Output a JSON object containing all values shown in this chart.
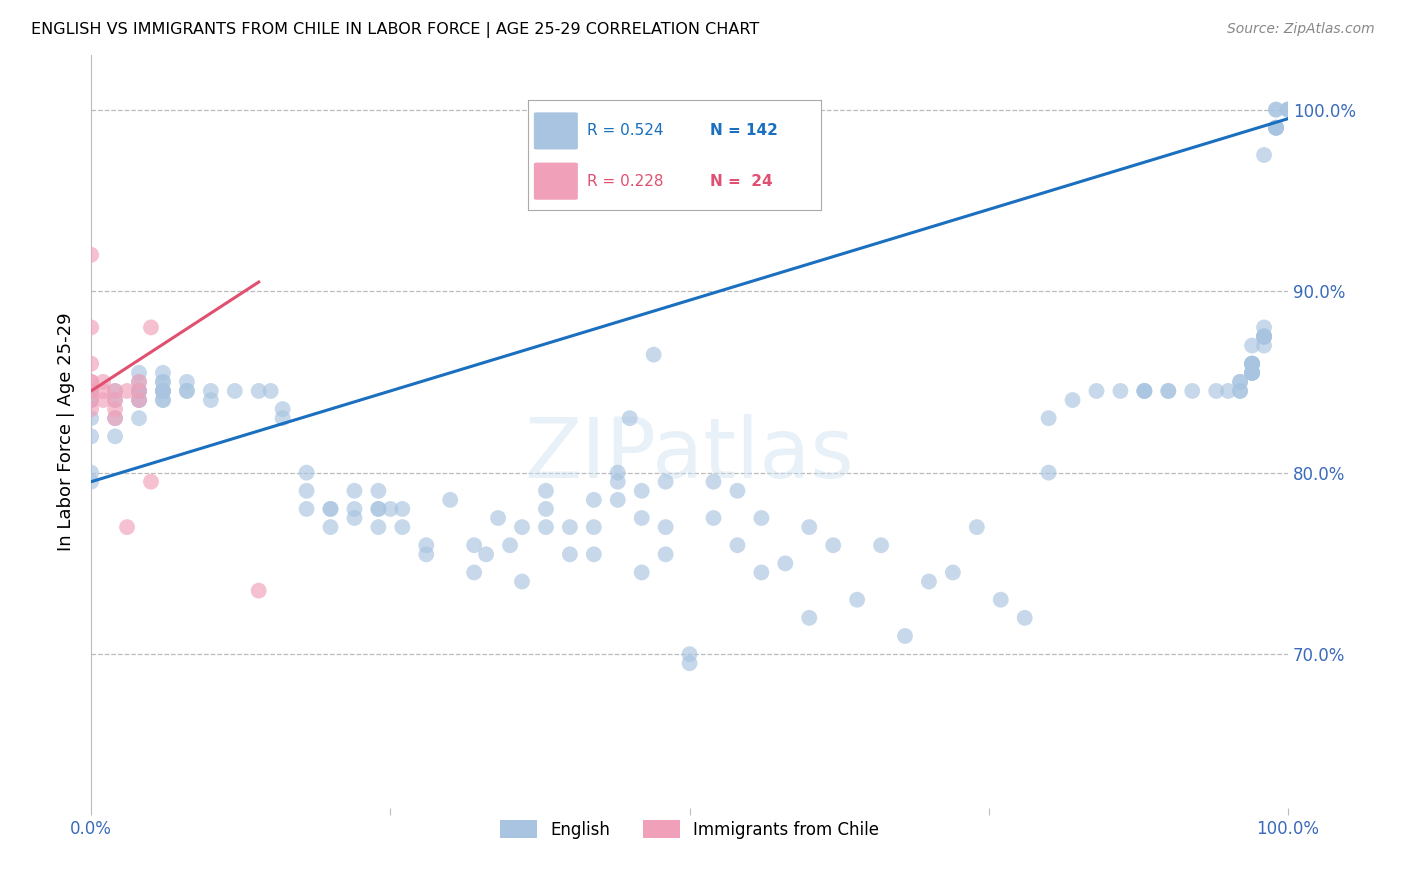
{
  "title": "ENGLISH VS IMMIGRANTS FROM CHILE IN LABOR FORCE | AGE 25-29 CORRELATION CHART",
  "source": "Source: ZipAtlas.com",
  "ylabel": "In Labor Force | Age 25-29",
  "ytick_labels": [
    "100.0%",
    "90.0%",
    "80.0%",
    "70.0%"
  ],
  "ytick_values": [
    1.0,
    0.9,
    0.8,
    0.7
  ],
  "xlim": [
    0.0,
    1.0
  ],
  "ylim": [
    0.615,
    1.03
  ],
  "english_color": "#a8c4e0",
  "chile_color": "#f0a0b8",
  "english_line_color": "#1a6fbf",
  "chile_line_color": "#e05070",
  "english_scatter_x": [
    0.0,
    0.0,
    0.0,
    0.0,
    0.0,
    0.0,
    0.0,
    0.02,
    0.02,
    0.02,
    0.02,
    0.04,
    0.04,
    0.04,
    0.04,
    0.04,
    0.04,
    0.04,
    0.04,
    0.06,
    0.06,
    0.06,
    0.06,
    0.06,
    0.06,
    0.06,
    0.06,
    0.06,
    0.08,
    0.08,
    0.08,
    0.1,
    0.1,
    0.12,
    0.14,
    0.15,
    0.16,
    0.16,
    0.18,
    0.18,
    0.18,
    0.2,
    0.2,
    0.2,
    0.22,
    0.22,
    0.22,
    0.24,
    0.24,
    0.24,
    0.24,
    0.25,
    0.26,
    0.26,
    0.28,
    0.28,
    0.3,
    0.32,
    0.32,
    0.33,
    0.34,
    0.35,
    0.36,
    0.36,
    0.38,
    0.38,
    0.38,
    0.4,
    0.4,
    0.42,
    0.42,
    0.42,
    0.44,
    0.44,
    0.44,
    0.45,
    0.46,
    0.46,
    0.46,
    0.47,
    0.48,
    0.48,
    0.48,
    0.5,
    0.5,
    0.52,
    0.52,
    0.54,
    0.54,
    0.56,
    0.56,
    0.58,
    0.6,
    0.6,
    0.62,
    0.64,
    0.66,
    0.68,
    0.7,
    0.72,
    0.74,
    0.76,
    0.78,
    0.8,
    0.8,
    0.82,
    0.84,
    0.86,
    0.88,
    0.88,
    0.88,
    0.9,
    0.9,
    0.92,
    0.94,
    0.95,
    0.96,
    0.96,
    0.96,
    0.96,
    0.97,
    0.97,
    0.97,
    0.97,
    0.97,
    0.97,
    0.97,
    0.97,
    0.97,
    0.97,
    0.97,
    0.98,
    0.98,
    0.98,
    0.98,
    0.98,
    0.98,
    0.98,
    0.98,
    0.99,
    0.99,
    0.99,
    0.99,
    0.99,
    0.99,
    1.0,
    1.0,
    1.0
  ],
  "english_scatter_y": [
    0.795,
    0.8,
    0.82,
    0.83,
    0.84,
    0.84,
    0.845,
    0.82,
    0.83,
    0.84,
    0.845,
    0.83,
    0.84,
    0.84,
    0.845,
    0.845,
    0.845,
    0.85,
    0.855,
    0.84,
    0.84,
    0.845,
    0.845,
    0.845,
    0.845,
    0.85,
    0.85,
    0.855,
    0.845,
    0.845,
    0.85,
    0.84,
    0.845,
    0.845,
    0.845,
    0.845,
    0.83,
    0.835,
    0.78,
    0.79,
    0.8,
    0.77,
    0.78,
    0.78,
    0.775,
    0.78,
    0.79,
    0.77,
    0.78,
    0.78,
    0.79,
    0.78,
    0.77,
    0.78,
    0.755,
    0.76,
    0.785,
    0.745,
    0.76,
    0.755,
    0.775,
    0.76,
    0.74,
    0.77,
    0.77,
    0.78,
    0.79,
    0.755,
    0.77,
    0.755,
    0.77,
    0.785,
    0.785,
    0.795,
    0.8,
    0.83,
    0.745,
    0.775,
    0.79,
    0.865,
    0.755,
    0.77,
    0.795,
    0.695,
    0.7,
    0.775,
    0.795,
    0.76,
    0.79,
    0.745,
    0.775,
    0.75,
    0.72,
    0.77,
    0.76,
    0.73,
    0.76,
    0.71,
    0.74,
    0.745,
    0.77,
    0.73,
    0.72,
    0.8,
    0.83,
    0.84,
    0.845,
    0.845,
    0.845,
    0.845,
    0.845,
    0.845,
    0.845,
    0.845,
    0.845,
    0.845,
    0.845,
    0.845,
    0.85,
    0.85,
    0.855,
    0.855,
    0.86,
    0.855,
    0.855,
    0.855,
    0.86,
    0.86,
    0.86,
    0.86,
    0.87,
    0.875,
    0.87,
    0.875,
    0.875,
    0.875,
    0.875,
    0.88,
    0.975,
    0.99,
    0.99,
    0.99,
    0.99,
    1.0,
    1.0,
    1.0,
    1.0,
    1.0
  ],
  "chile_scatter_x": [
    0.0,
    0.0,
    0.0,
    0.0,
    0.0,
    0.0,
    0.0,
    0.0,
    0.0,
    0.01,
    0.01,
    0.01,
    0.02,
    0.02,
    0.02,
    0.02,
    0.03,
    0.03,
    0.04,
    0.04,
    0.04,
    0.05,
    0.05,
    0.14
  ],
  "chile_scatter_y": [
    0.835,
    0.84,
    0.845,
    0.845,
    0.85,
    0.85,
    0.86,
    0.88,
    0.92,
    0.84,
    0.845,
    0.85,
    0.83,
    0.835,
    0.84,
    0.845,
    0.77,
    0.845,
    0.84,
    0.845,
    0.85,
    0.795,
    0.88,
    0.735
  ],
  "english_line_x": [
    0.0,
    1.0
  ],
  "english_line_y": [
    0.795,
    0.995
  ],
  "chile_line_x": [
    0.0,
    0.14
  ],
  "chile_line_y": [
    0.845,
    0.905
  ]
}
